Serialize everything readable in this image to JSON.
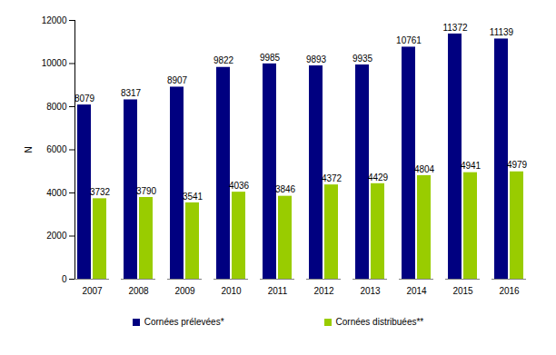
{
  "chart_data": {
    "type": "bar",
    "categories": [
      "2007",
      "2008",
      "2009",
      "2010",
      "2011",
      "2012",
      "2013",
      "2014",
      "2015",
      "2016"
    ],
    "series": [
      {
        "name": "Cornées prélevées*",
        "color": "#000080",
        "values": [
          8079,
          8317,
          8907,
          9822,
          9985,
          9893,
          9935,
          10761,
          11372,
          11139
        ]
      },
      {
        "name": "Cornées distribuées**",
        "color": "#99cc00",
        "values": [
          3732,
          3790,
          3541,
          4036,
          3846,
          4372,
          4429,
          4804,
          4941,
          4979
        ]
      }
    ],
    "y_label": "N",
    "ylim": [
      0,
      12000
    ],
    "yticks": [
      0,
      2000,
      4000,
      6000,
      8000,
      10000,
      12000
    ],
    "data_labels": true,
    "grid": false,
    "legend": "bottom"
  }
}
